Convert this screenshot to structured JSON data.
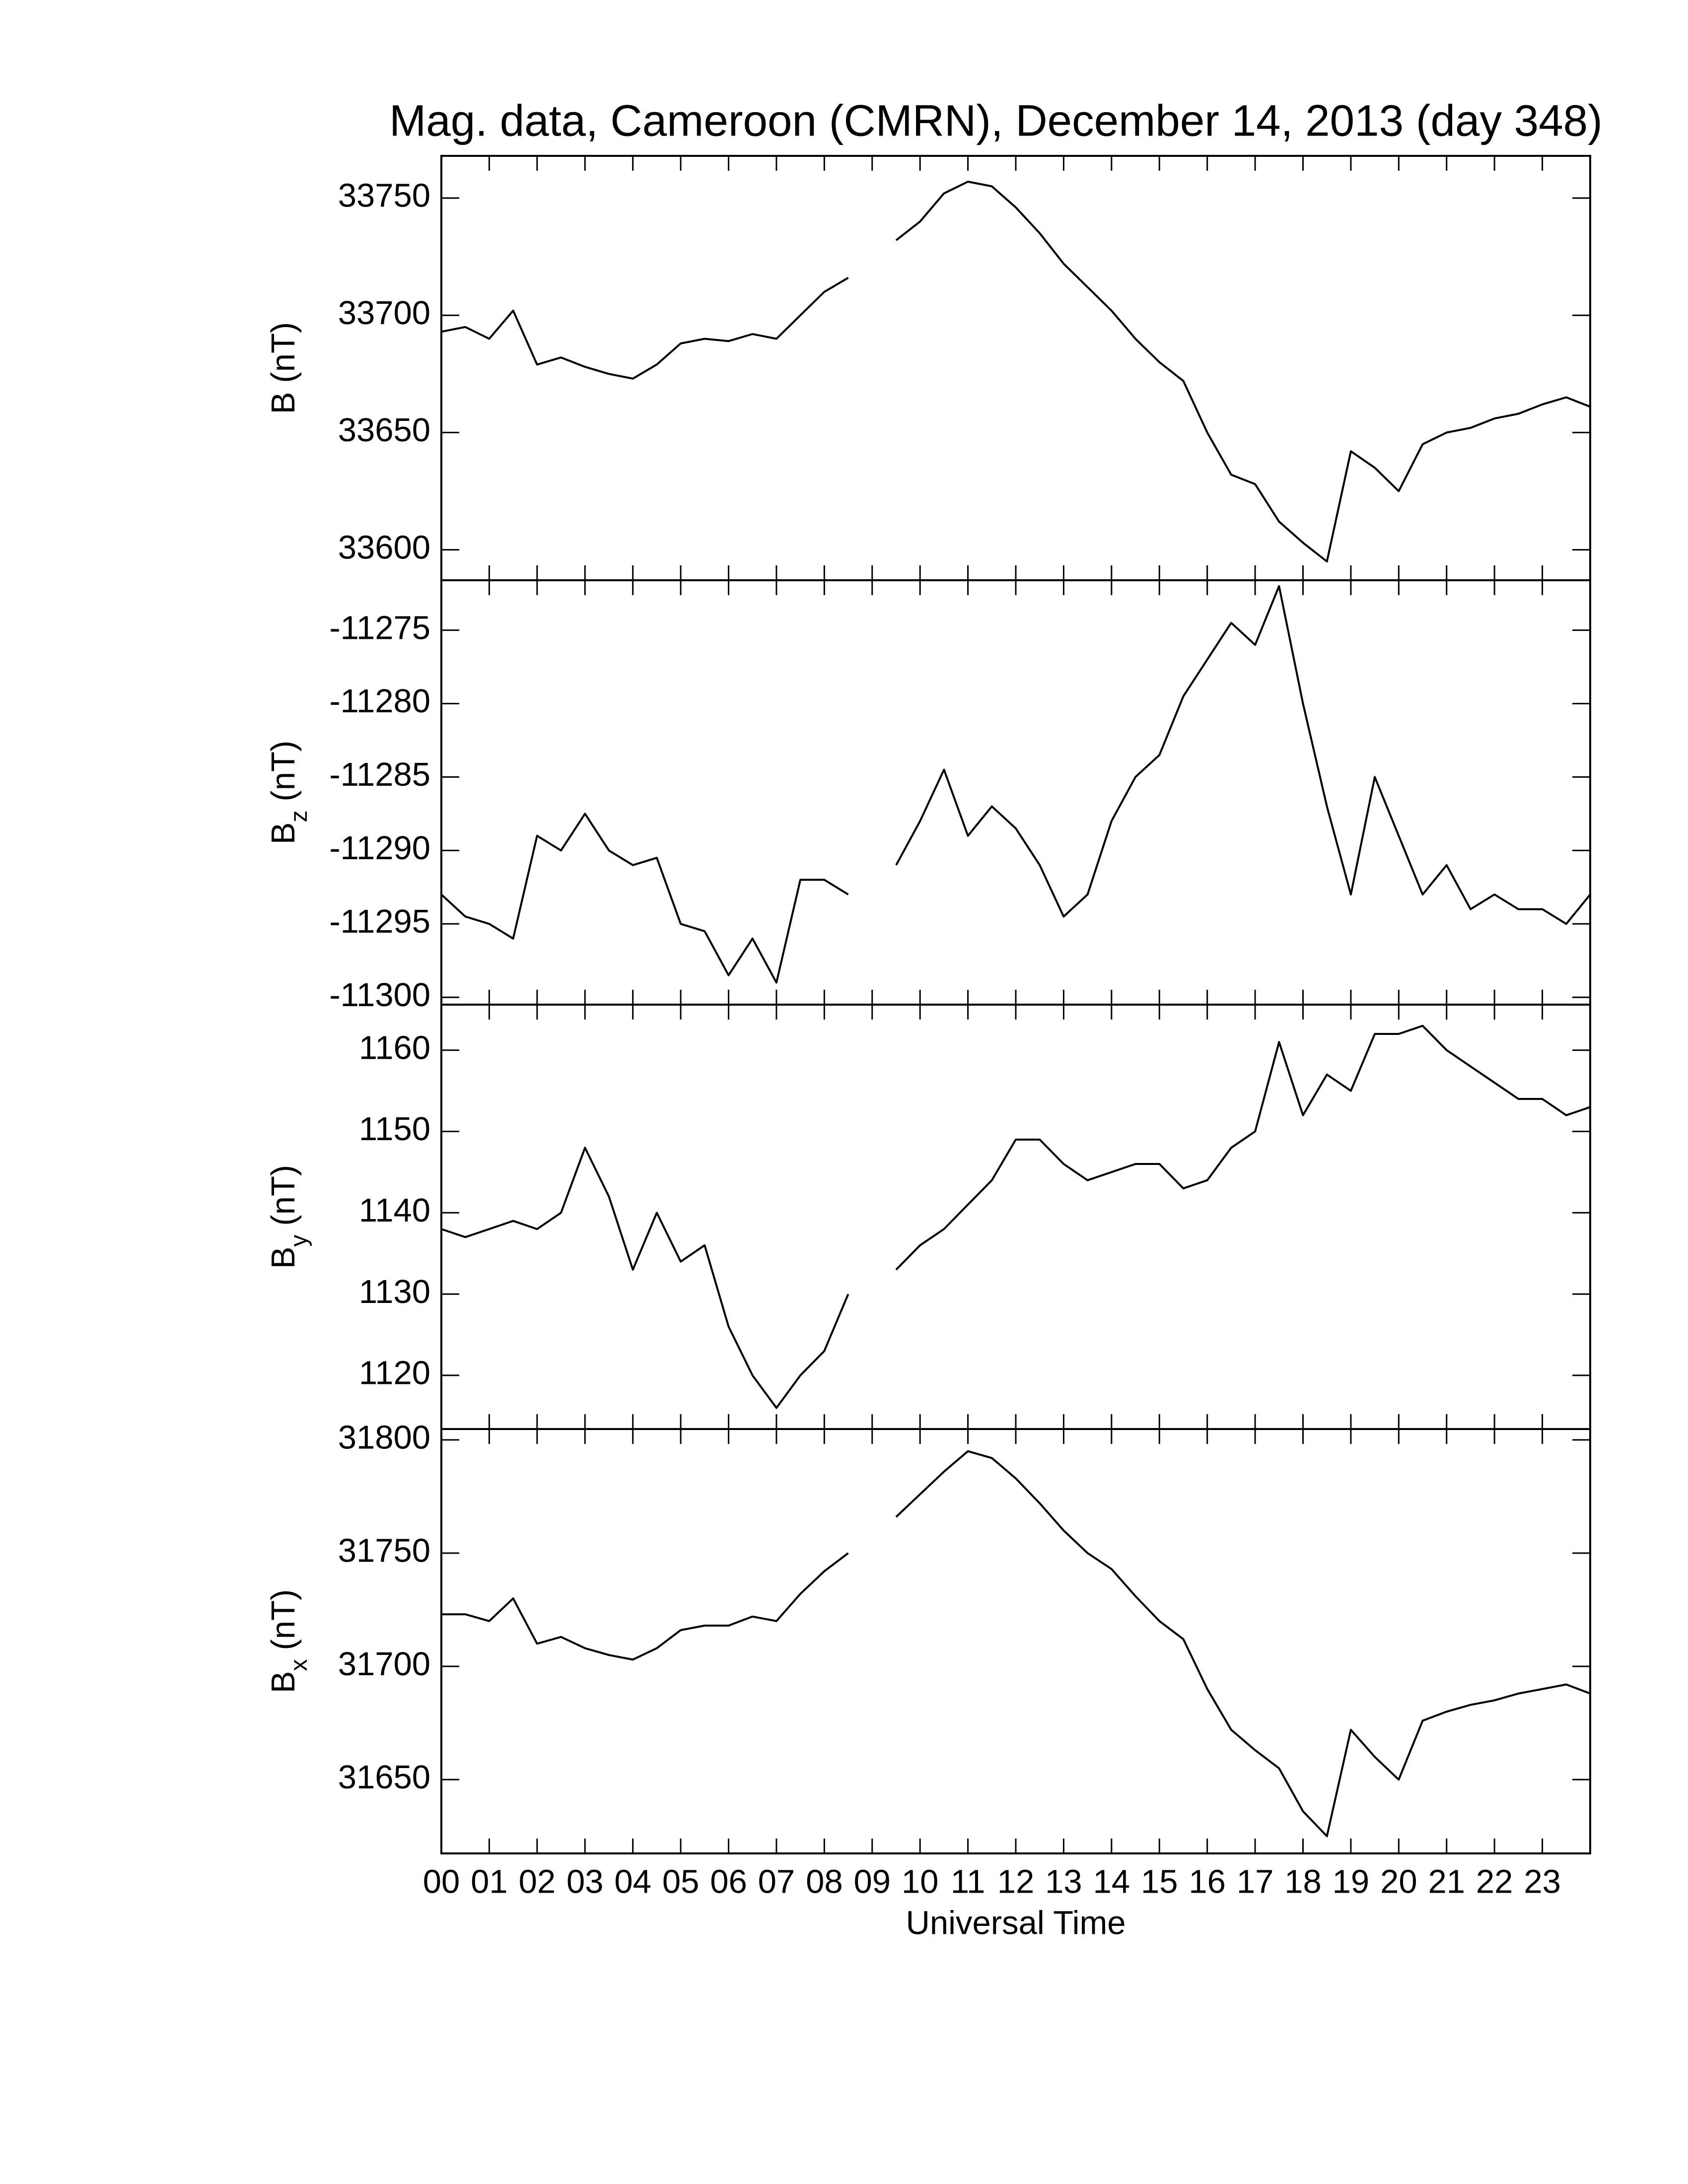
{
  "chart_data": [
    {
      "type": "line",
      "title": "Mag. data, Cameroon (CMRN), December 14, 2013 (day 348)",
      "ylabel": "B",
      "ylabel_unit": "(nT)",
      "x": [
        0,
        0.5,
        1,
        1.5,
        2,
        2.5,
        3,
        3.5,
        4,
        4.5,
        5,
        5.5,
        6,
        6.5,
        7,
        7.5,
        8,
        8.5,
        9,
        9.5,
        10,
        10.5,
        11,
        11.5,
        12,
        12.5,
        13,
        13.5,
        14,
        14.5,
        15,
        15.5,
        16,
        16.5,
        17,
        17.5,
        18,
        18.5,
        19,
        19.5,
        20,
        20.5,
        21,
        21.5,
        22,
        22.5,
        23,
        23.5,
        24
      ],
      "values": [
        33693,
        33695,
        33690,
        33702,
        33679,
        33682,
        33678,
        33675,
        33673,
        33679,
        33688,
        33690,
        33689,
        33692,
        33690,
        33700,
        33710,
        33716,
        null,
        33732,
        33740,
        33752,
        33757,
        33755,
        33746,
        33735,
        33722,
        33712,
        33702,
        33690,
        33680,
        33672,
        33650,
        33632,
        33628,
        33612,
        33603,
        33595,
        33642,
        33635,
        33625,
        33645,
        33650,
        33652,
        33656,
        33658,
        33662,
        33665,
        33661
      ],
      "color": "#000000",
      "xlim": [
        0,
        24
      ],
      "ylim": [
        33587,
        33768
      ],
      "yticks": [
        33600,
        33650,
        33700,
        33750
      ]
    },
    {
      "type": "line",
      "ylabel": "B",
      "ylabel_sub": "z",
      "ylabel_unit": "(nT)",
      "x": [
        0,
        0.5,
        1,
        1.5,
        2,
        2.5,
        3,
        3.5,
        4,
        4.5,
        5,
        5.5,
        6,
        6.5,
        7,
        7.5,
        8,
        8.5,
        9,
        9.5,
        10,
        10.5,
        11,
        11.5,
        12,
        12.5,
        13,
        13.5,
        14,
        14.5,
        15,
        15.5,
        16,
        16.5,
        17,
        17.5,
        18,
        18.5,
        19,
        19.5,
        20,
        20.5,
        21,
        21.5,
        22,
        22.5,
        23,
        23.5,
        24
      ],
      "values": [
        -11293,
        -11294.5,
        -11295,
        -11296,
        -11289,
        -11290,
        -11287.5,
        -11290,
        -11291,
        -11290.5,
        -11295,
        -11295.5,
        -11298.5,
        -11296,
        -11299,
        -11292,
        -11292,
        -11293,
        null,
        -11291,
        -11288,
        -11284.5,
        -11289,
        -11287,
        -11288.5,
        -11291,
        -11294.5,
        -11293,
        -11288,
        -11285,
        -11283.5,
        -11279.5,
        -11277,
        -11274.5,
        -11276,
        -11272,
        -11280,
        -11287,
        -11293,
        -11285,
        -11289,
        -11293,
        -11291,
        -11294,
        -11293,
        -11294,
        -11294,
        -11295,
        -11293
      ],
      "color": "#000000",
      "xlim": [
        0,
        24
      ],
      "ylim": [
        -11300.5,
        -11271.6
      ],
      "yticks": [
        -11300,
        -11295,
        -11290,
        -11285,
        -11280,
        -11275
      ]
    },
    {
      "type": "line",
      "ylabel": "B",
      "ylabel_sub": "y",
      "ylabel_unit": "(nT)",
      "x": [
        0,
        0.5,
        1,
        1.5,
        2,
        2.5,
        3,
        3.5,
        4,
        4.5,
        5,
        5.5,
        6,
        6.5,
        7,
        7.5,
        8,
        8.5,
        9,
        9.5,
        10,
        10.5,
        11,
        11.5,
        12,
        12.5,
        13,
        13.5,
        14,
        14.5,
        15,
        15.5,
        16,
        16.5,
        17,
        17.5,
        18,
        18.5,
        19,
        19.5,
        20,
        20.5,
        21,
        21.5,
        22,
        22.5,
        23,
        23.5,
        24
      ],
      "values": [
        1138,
        1137,
        1138,
        1139,
        1138,
        1140,
        1148,
        1142,
        1133,
        1140,
        1134,
        1136,
        1126,
        1120,
        1116,
        1120,
        1123,
        1130,
        null,
        1133,
        1136,
        1138,
        1141,
        1144,
        1149,
        1149,
        1146,
        1144,
        1145,
        1146,
        1146,
        1143,
        1144,
        1148,
        1150,
        1161,
        1152,
        1157,
        1155,
        1162,
        1162,
        1163,
        1160,
        1158,
        1156,
        1154,
        1154,
        1152,
        1153
      ],
      "color": "#000000",
      "xlim": [
        0,
        24
      ],
      "ylim": [
        1113.4,
        1165.6
      ],
      "yticks": [
        1120,
        1130,
        1140,
        1150,
        1160
      ]
    },
    {
      "type": "line",
      "ylabel": "B",
      "ylabel_sub": "x",
      "ylabel_unit": "(nT)",
      "xlabel": "Universal Time",
      "x": [
        0,
        0.5,
        1,
        1.5,
        2,
        2.5,
        3,
        3.5,
        4,
        4.5,
        5,
        5.5,
        6,
        6.5,
        7,
        7.5,
        8,
        8.5,
        9,
        9.5,
        10,
        10.5,
        11,
        11.5,
        12,
        12.5,
        13,
        13.5,
        14,
        14.5,
        15,
        15.5,
        16,
        16.5,
        17,
        17.5,
        18,
        18.5,
        19,
        19.5,
        20,
        20.5,
        21,
        21.5,
        22,
        22.5,
        23,
        23.5,
        24
      ],
      "values": [
        31723,
        31723,
        31720,
        31730,
        31710,
        31713,
        31708,
        31705,
        31703,
        31708,
        31716,
        31718,
        31718,
        31722,
        31720,
        31732,
        31742,
        31750,
        null,
        31766,
        31776,
        31786,
        31795,
        31792,
        31783,
        31772,
        31760,
        31750,
        31743,
        31731,
        31720,
        31712,
        31690,
        31672,
        31663,
        31655,
        31636,
        31625,
        31672,
        31660,
        31650,
        31676,
        31680,
        31683,
        31685,
        31688,
        31690,
        31692,
        31688
      ],
      "color": "#000000",
      "xlim": [
        0,
        24
      ],
      "ylim": [
        31617.4,
        31804.8
      ],
      "yticks": [
        31650,
        31700,
        31750,
        31800
      ],
      "xticks": [
        {
          "value": 0,
          "label": "00"
        },
        {
          "value": 1,
          "label": "01"
        },
        {
          "value": 2,
          "label": "02"
        },
        {
          "value": 3,
          "label": "03"
        },
        {
          "value": 4,
          "label": "04"
        },
        {
          "value": 5,
          "label": "05"
        },
        {
          "value": 6,
          "label": "06"
        },
        {
          "value": 7,
          "label": "07"
        },
        {
          "value": 8,
          "label": "08"
        },
        {
          "value": 9,
          "label": "09"
        },
        {
          "value": 10,
          "label": "10"
        },
        {
          "value": 11,
          "label": "11"
        },
        {
          "value": 12,
          "label": "12"
        },
        {
          "value": 13,
          "label": "13"
        },
        {
          "value": 14,
          "label": "14"
        },
        {
          "value": 15,
          "label": "15"
        },
        {
          "value": 16,
          "label": "16"
        },
        {
          "value": 17,
          "label": "17"
        },
        {
          "value": 18,
          "label": "18"
        },
        {
          "value": 19,
          "label": "19"
        },
        {
          "value": 20,
          "label": "20"
        },
        {
          "value": 21,
          "label": "21"
        },
        {
          "value": 22,
          "label": "22"
        },
        {
          "value": 23,
          "label": "23"
        }
      ]
    }
  ]
}
